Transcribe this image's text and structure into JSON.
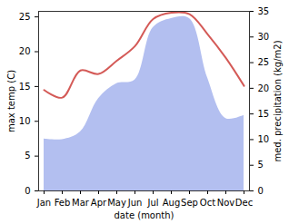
{
  "chart_data": {
    "type": "line",
    "x_label": "date (month)",
    "y_label": "max temp (C)",
    "y2_label": "med. precipitation (kg/m2)",
    "categories": [
      "Jan",
      "Feb",
      "Mar",
      "Apr",
      "May",
      "Jun",
      "Jul",
      "Aug",
      "Sep",
      "Oct",
      "Nov",
      "Dec"
    ],
    "ylim": [
      0,
      25.8
    ],
    "yticks": [
      0,
      5,
      10,
      15,
      20,
      25
    ],
    "y2lim": [
      0,
      35
    ],
    "y2ticks": [
      0,
      5,
      10,
      15,
      20,
      25,
      30,
      35
    ],
    "series": [
      {
        "name": "med. precipitation (kg/m2)",
        "type": "area",
        "axis": "y2",
        "color": "#b3bff0",
        "values": [
          10.1,
          10,
          11.5,
          18,
          20.9,
          21.6,
          31.8,
          33.6,
          33.6,
          22,
          14.1,
          14.7
        ]
      },
      {
        "name": "max temp (C)",
        "type": "line",
        "color": "#d45a57",
        "values": [
          14.5,
          13.4,
          17.3,
          16.8,
          18.7,
          20.8,
          24.7,
          25.6,
          25.4,
          22.5,
          19.1,
          15.1
        ]
      }
    ]
  }
}
